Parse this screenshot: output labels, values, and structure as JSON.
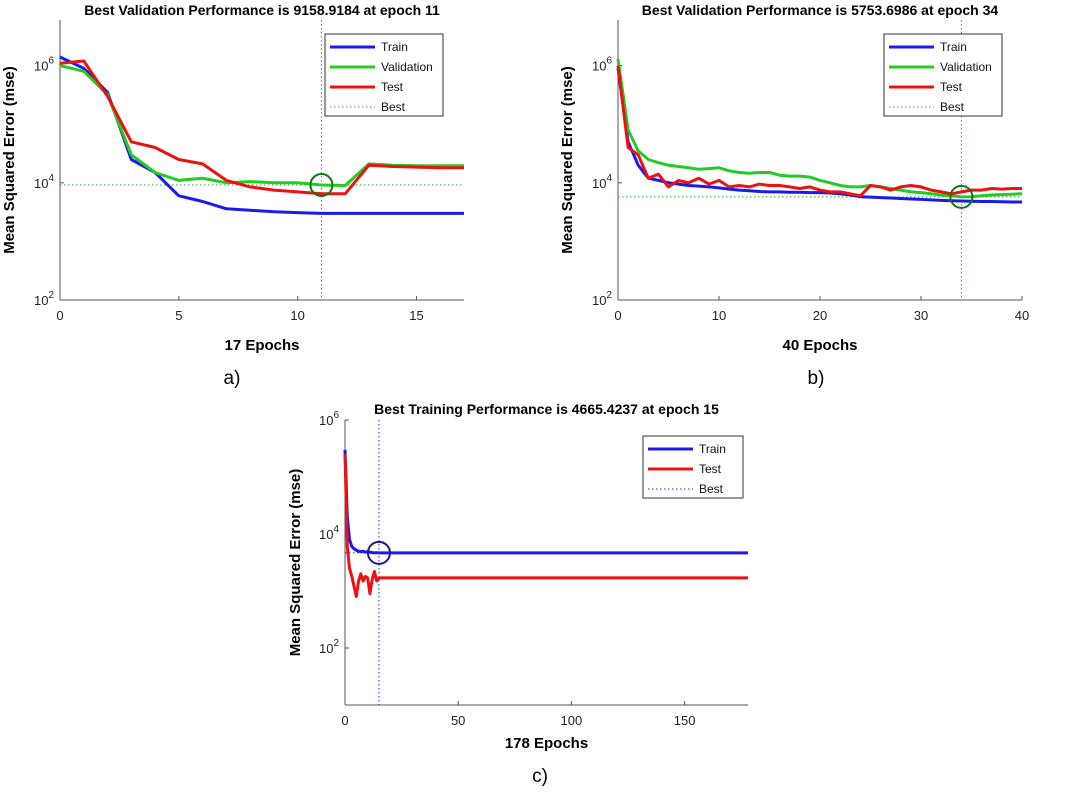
{
  "chart_data": [
    {
      "type": "line",
      "panel_label": "a)",
      "title": "Best Validation Performance is 9158.9184 at epoch 11",
      "xlabel": "17 Epochs",
      "ylabel": "Mean Squared Error  (mse)",
      "yscale": "log",
      "xlim": [
        0,
        17
      ],
      "ylim": [
        100,
        6000000
      ],
      "xticks": [
        0,
        5,
        10,
        15
      ],
      "yticks": [
        {
          "value": 100,
          "base": "10",
          "exp": "2"
        },
        {
          "value": 10000,
          "base": "10",
          "exp": "4"
        },
        {
          "value": 1000000,
          "base": "10",
          "exp": "6"
        }
      ],
      "legend": [
        "Train",
        "Validation",
        "Test",
        "Best"
      ],
      "colors": {
        "Train": "#1a1aee",
        "Validation": "#22cc22",
        "Test": "#ee1111",
        "Best": "#22aa22"
      },
      "best": {
        "x": 11,
        "y": 9158.9184,
        "series": "Validation"
      },
      "series": [
        {
          "name": "Train",
          "x": [
            0,
            1,
            2,
            3,
            4,
            5,
            6,
            7,
            8,
            9,
            10,
            11,
            12,
            13,
            14,
            15,
            16,
            17
          ],
          "values": [
            1400000,
            900000,
            350000,
            25000,
            15000,
            6000,
            4800,
            3600,
            3400,
            3200,
            3100,
            3000,
            3000,
            3000,
            3000,
            3000,
            3000,
            3000
          ]
        },
        {
          "name": "Validation",
          "x": [
            0,
            1,
            2,
            3,
            4,
            5,
            6,
            7,
            8,
            9,
            10,
            11,
            12,
            13,
            14,
            15,
            16,
            17
          ],
          "values": [
            1000000,
            800000,
            320000,
            30000,
            15000,
            11000,
            12000,
            10000,
            10500,
            10000,
            10000,
            9158.9184,
            9000,
            21000,
            20000,
            19500,
            19500,
            19500
          ]
        },
        {
          "name": "Test",
          "x": [
            0,
            1,
            2,
            3,
            4,
            5,
            6,
            7,
            8,
            9,
            10,
            11,
            12,
            13,
            14,
            15,
            16,
            17
          ],
          "values": [
            1100000,
            1200000,
            300000,
            50000,
            40000,
            25000,
            21000,
            11000,
            8500,
            7500,
            7000,
            6500,
            6500,
            20000,
            19000,
            18500,
            18000,
            18000
          ]
        }
      ]
    },
    {
      "type": "line",
      "panel_label": "b)",
      "title": "Best Validation Performance is 5753.6986 at epoch 34",
      "xlabel": "40 Epochs",
      "ylabel": "Mean Squared Error  (mse)",
      "yscale": "log",
      "xlim": [
        0,
        40
      ],
      "ylim": [
        100,
        6000000
      ],
      "xticks": [
        0,
        10,
        20,
        30,
        40
      ],
      "yticks": [
        {
          "value": 100,
          "base": "10",
          "exp": "2"
        },
        {
          "value": 10000,
          "base": "10",
          "exp": "4"
        },
        {
          "value": 1000000,
          "base": "10",
          "exp": "6"
        }
      ],
      "legend": [
        "Train",
        "Validation",
        "Test",
        "Best"
      ],
      "colors": {
        "Train": "#1a1aee",
        "Validation": "#22cc22",
        "Test": "#ee1111",
        "Best": "#22aa22"
      },
      "best": {
        "x": 34,
        "y": 5753.6986,
        "series": "Validation"
      },
      "series": [
        {
          "name": "Train",
          "x": [
            0,
            1,
            2,
            3,
            4,
            5,
            6,
            7,
            8,
            9,
            10,
            11,
            12,
            13,
            14,
            15,
            16,
            17,
            18,
            19,
            20,
            21,
            22,
            23,
            24,
            25,
            26,
            27,
            28,
            29,
            30,
            31,
            32,
            33,
            34,
            35,
            36,
            37,
            38,
            39,
            40
          ],
          "values": [
            900000,
            50000,
            20000,
            12000,
            11000,
            10000,
            9500,
            9000,
            8800,
            8500,
            8200,
            7800,
            7500,
            7300,
            7100,
            7000,
            7000,
            6900,
            6900,
            6800,
            6800,
            6700,
            6500,
            6200,
            5800,
            5700,
            5600,
            5500,
            5400,
            5300,
            5200,
            5100,
            5000,
            4950,
            4900,
            4850,
            4800,
            4800,
            4750,
            4700,
            4700
          ]
        },
        {
          "name": "Validation",
          "x": [
            0,
            1,
            2,
            3,
            4,
            5,
            6,
            7,
            8,
            9,
            10,
            11,
            12,
            13,
            14,
            15,
            16,
            17,
            18,
            19,
            20,
            21,
            22,
            23,
            24,
            25,
            26,
            27,
            28,
            29,
            30,
            31,
            32,
            33,
            34,
            35,
            36,
            37,
            38,
            39,
            40
          ],
          "values": [
            1300000,
            80000,
            35000,
            25000,
            22000,
            20000,
            19000,
            18000,
            17000,
            17500,
            18000,
            16000,
            15000,
            14500,
            15000,
            15000,
            13500,
            13000,
            13000,
            12500,
            11000,
            10000,
            9000,
            8500,
            8500,
            9000,
            8500,
            8000,
            7500,
            7000,
            6800,
            6500,
            6200,
            6000,
            5753.6986,
            5800,
            6000,
            6200,
            6300,
            6400,
            6500
          ]
        },
        {
          "name": "Test",
          "x": [
            0,
            1,
            2,
            3,
            4,
            5,
            6,
            7,
            8,
            9,
            10,
            11,
            12,
            13,
            14,
            15,
            16,
            17,
            18,
            19,
            20,
            21,
            22,
            23,
            24,
            25,
            26,
            27,
            28,
            29,
            30,
            31,
            32,
            33,
            34,
            35,
            36,
            37,
            38,
            39,
            40
          ],
          "values": [
            1000000,
            40000,
            30000,
            12000,
            14000,
            8500,
            11000,
            10000,
            12000,
            9500,
            11000,
            8500,
            9000,
            8500,
            9500,
            9000,
            9000,
            8500,
            8000,
            8500,
            7500,
            7000,
            7000,
            6500,
            6000,
            9000,
            8500,
            7500,
            8500,
            9000,
            8500,
            7500,
            7000,
            6500,
            7000,
            7500,
            7500,
            8000,
            7800,
            8000,
            8000
          ]
        }
      ]
    },
    {
      "type": "line",
      "panel_label": "c)",
      "title": "Best Training Performance is 4665.4237 at epoch 15",
      "xlabel": "178 Epochs",
      "ylabel": "Mean Squared Error  (mse)",
      "yscale": "log",
      "xlim": [
        0,
        178
      ],
      "ylim": [
        10,
        1000000
      ],
      "xticks": [
        0,
        50,
        100,
        150
      ],
      "yticks": [
        {
          "value": 100,
          "base": "10",
          "exp": "2"
        },
        {
          "value": 10000,
          "base": "10",
          "exp": "4"
        },
        {
          "value": 1000000,
          "base": "10",
          "exp": "6"
        }
      ],
      "legend": [
        "Train",
        "Test",
        "Best"
      ],
      "colors": {
        "Train": "#1a1aee",
        "Test": "#ee1111",
        "Best": "#2222cc"
      },
      "best": {
        "x": 15,
        "y": 4665.4237,
        "series": "Train"
      },
      "series": [
        {
          "name": "Train",
          "x": [
            0,
            1,
            2,
            3,
            4,
            5,
            6,
            7,
            8,
            9,
            10,
            11,
            12,
            13,
            14,
            15,
            16,
            178
          ],
          "values": [
            300000,
            20000,
            8000,
            6000,
            5500,
            5200,
            5000,
            4900,
            5000,
            4800,
            4900,
            4800,
            4700,
            4700,
            4700,
            4665.4237,
            4665.4237,
            4665.4237
          ]
        },
        {
          "name": "Test",
          "x": [
            0,
            1,
            2,
            3,
            4,
            5,
            6,
            7,
            8,
            9,
            10,
            11,
            12,
            13,
            14,
            15,
            16,
            178
          ],
          "values": [
            250000,
            6000,
            2500,
            1800,
            1200,
            800,
            1500,
            2000,
            1500,
            1800,
            1700,
            900,
            1600,
            2200,
            1500,
            1700,
            1700,
            1700
          ]
        }
      ]
    }
  ]
}
